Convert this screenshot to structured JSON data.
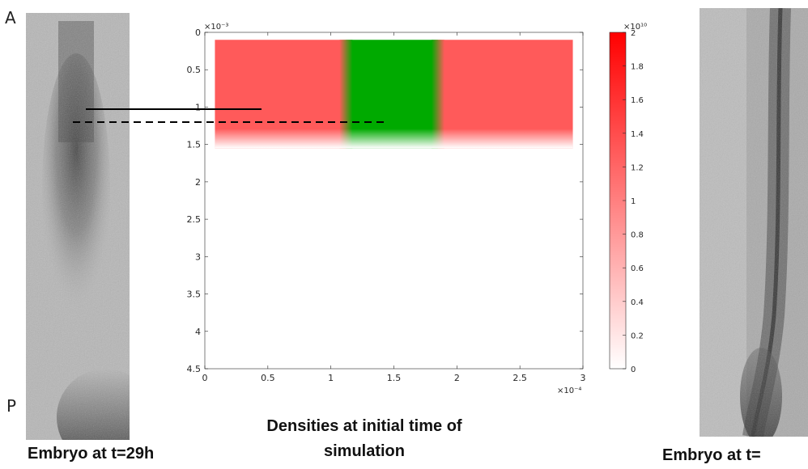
{
  "labels": {
    "anterior": "A",
    "posterior": "P"
  },
  "captions": {
    "left": "Embryo at t=29h",
    "center": "Densities at initial time of simulation",
    "right": "Embryo at t="
  },
  "colors": {
    "red": "#ff5a5a",
    "green": "#00aa00",
    "colorbar_top": "#ff0000"
  },
  "chart_data": {
    "type": "heatmap",
    "x_multiplier_label": "×10⁻⁴",
    "y_multiplier_label": "×10⁻³",
    "xlim": [
      0,
      3
    ],
    "ylim": [
      0,
      4.5
    ],
    "y_reversed": true,
    "x_ticks": [
      "0",
      "0.5",
      "1",
      "1.5",
      "2",
      "2.5",
      "3"
    ],
    "y_ticks": [
      "0",
      "0.5",
      "1",
      "1.5",
      "2",
      "2.5",
      "3",
      "3.5",
      "4",
      "4.5"
    ],
    "regions": [
      {
        "name": "left-red",
        "color": "red",
        "x": [
          0.08,
          1.12
        ],
        "y": [
          0.1,
          1.55
        ]
      },
      {
        "name": "green",
        "color": "green",
        "x": [
          1.12,
          1.85
        ],
        "y": [
          0.1,
          1.55
        ]
      },
      {
        "name": "right-red",
        "color": "red",
        "x": [
          1.85,
          2.92
        ],
        "y": [
          0.1,
          1.55
        ]
      }
    ],
    "colorbar": {
      "multiplier_label": "×10¹⁰",
      "range": [
        0,
        2
      ],
      "ticks": [
        "0",
        "0.2",
        "0.4",
        "0.6",
        "0.8",
        "1",
        "1.2",
        "1.4",
        "1.6",
        "1.8",
        "2"
      ]
    }
  }
}
